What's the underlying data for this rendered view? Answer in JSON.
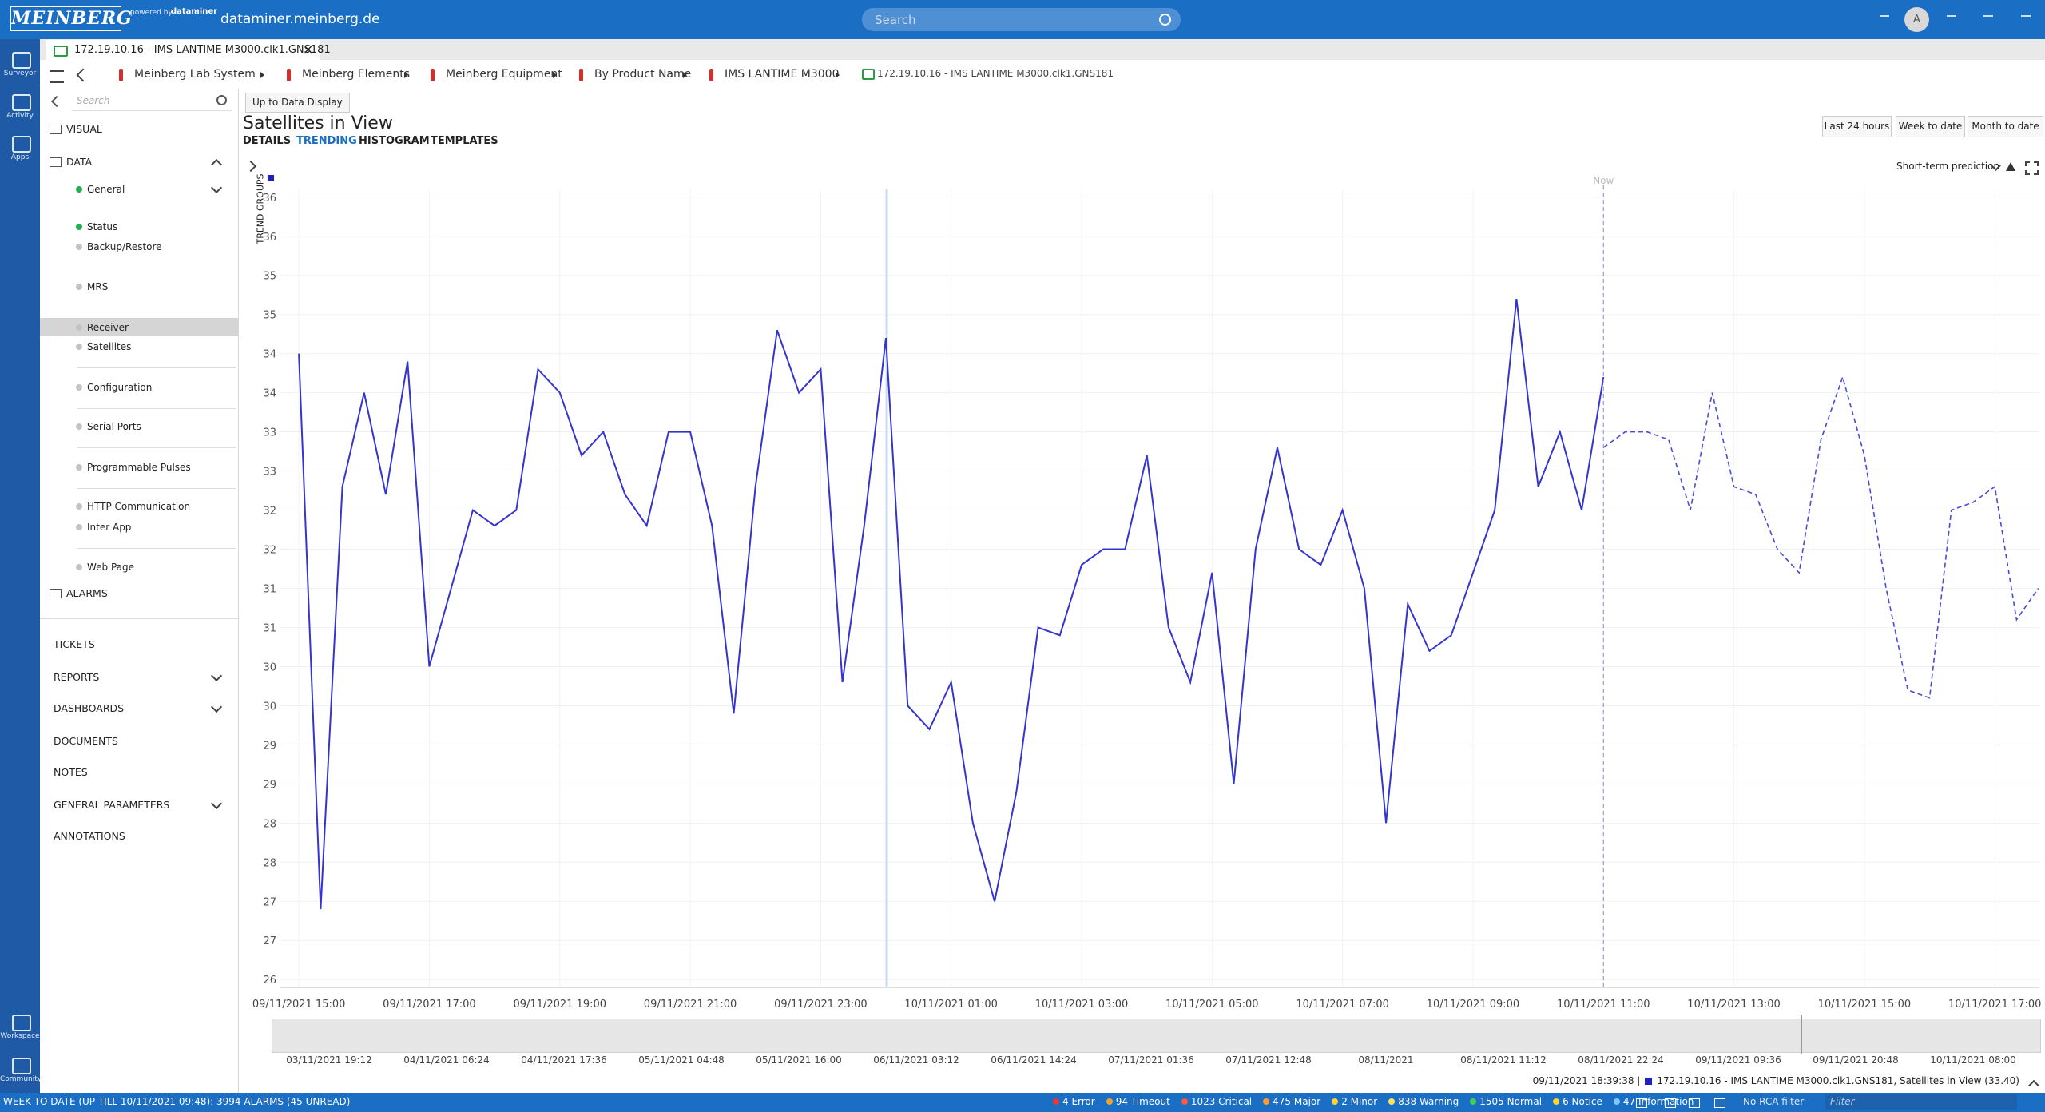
{
  "header": {
    "brand": "MEINBERG",
    "powered": "powered by",
    "dataminer": "dataminer",
    "host": "dataminer.meinberg.de",
    "search": "Search",
    "avatar": "A"
  },
  "rail": [
    "Surveyor",
    "Activity",
    "Apps",
    "Workspace",
    "Community"
  ],
  "tab": "172.19.10.16 - IMS LANTIME M3000.clk1.GNS181",
  "breadcrumb": [
    "Meinberg Lab System",
    "Meinberg Elements",
    "Meinberg Equipment",
    "By Product Name",
    "IMS LANTIME M3000",
    "172.19.10.16 - IMS LANTIME M3000.clk1.GNS181"
  ],
  "sidebar": {
    "search": "Search",
    "items": [
      {
        "label": "VISUAL"
      },
      {
        "label": "DATA"
      },
      {
        "label": "General",
        "dot": "#22b14c"
      },
      {
        "label": "Status",
        "dot": "#22b14c"
      },
      {
        "label": "Backup/Restore",
        "dot": "#c4c4c4"
      },
      {
        "label": "MRS",
        "dot": "#c4c4c4"
      },
      {
        "label": "Receiver",
        "dot": "#c4c4c4"
      },
      {
        "label": "Satellites",
        "dot": "#c4c4c4"
      },
      {
        "label": "Configuration",
        "dot": "#c4c4c4"
      },
      {
        "label": "Serial Ports",
        "dot": "#c4c4c4"
      },
      {
        "label": "Programmable Pulses",
        "dot": "#c4c4c4"
      },
      {
        "label": "HTTP Communication",
        "dot": "#c4c4c4"
      },
      {
        "label": "Inter App",
        "dot": "#c4c4c4"
      },
      {
        "label": "Web Page",
        "dot": "#c4c4c4"
      },
      {
        "label": "ALARMS"
      },
      {
        "label": "TICKETS"
      },
      {
        "label": "REPORTS"
      },
      {
        "label": "DASHBOARDS"
      },
      {
        "label": "DOCUMENTS"
      },
      {
        "label": "NOTES"
      },
      {
        "label": "GENERAL PARAMETERS"
      },
      {
        "label": "ANNOTATIONS"
      }
    ]
  },
  "toolbar": {
    "button": "Up to Data Display",
    "tabs": [
      "DETAILS",
      "TRENDING",
      "HISTOGRAM",
      "TEMPLATES"
    ],
    "ranges": [
      "Last 24 hours",
      "Week to date",
      "Month to date"
    ],
    "prediction": "Short-term prediction",
    "trend_groups": "TREND GROUPS"
  },
  "chart_data": {
    "type": "line",
    "title": "Satellites in View",
    "now_label": "Now",
    "grid": true,
    "ylim": [
      25.9,
      36.1
    ],
    "yticks": [
      {
        "value": 26,
        "label": "26"
      },
      {
        "value": 26.5,
        "label": "27"
      },
      {
        "value": 27,
        "label": "27"
      },
      {
        "value": 27.5,
        "label": "28"
      },
      {
        "value": 28,
        "label": "28"
      },
      {
        "value": 28.5,
        "label": "29"
      },
      {
        "value": 29,
        "label": "29"
      },
      {
        "value": 29.5,
        "label": "30"
      },
      {
        "value": 30,
        "label": "30"
      },
      {
        "value": 30.5,
        "label": "31"
      },
      {
        "value": 31,
        "label": "31"
      },
      {
        "value": 31.5,
        "label": "32"
      },
      {
        "value": 32,
        "label": "32"
      },
      {
        "value": 32.5,
        "label": "33"
      },
      {
        "value": 33,
        "label": "33"
      },
      {
        "value": 33.5,
        "label": "34"
      },
      {
        "value": 34,
        "label": "34"
      },
      {
        "value": 34.5,
        "label": "35"
      },
      {
        "value": 35,
        "label": "35"
      },
      {
        "value": 35.5,
        "label": "36"
      },
      {
        "value": 36,
        "label": "36"
      }
    ],
    "xlim": [
      "09/11/2021 14:43",
      "10/11/2021 17:41"
    ],
    "xticks": [
      "09/11/2021 15:00",
      "09/11/2021 17:00",
      "09/11/2021 19:00",
      "09/11/2021 21:00",
      "09/11/2021 23:00",
      "10/11/2021 01:00",
      "10/11/2021 03:00",
      "10/11/2021 05:00",
      "10/11/2021 07:00",
      "10/11/2021 09:00",
      "10/11/2021 11:00",
      "10/11/2021 13:00",
      "10/11/2021 15:00",
      "10/11/2021 17:00"
    ],
    "series": [
      {
        "color": "#3434d0",
        "line_style": "solid",
        "x": [
          "09/11/2021 15:00",
          "09/11/2021 15:20",
          "09/11/2021 15:40",
          "09/11/2021 16:00",
          "09/11/2021 16:20",
          "09/11/2021 16:40",
          "09/11/2021 17:00",
          "09/11/2021 17:20",
          "09/11/2021 17:40",
          "09/11/2021 18:00",
          "09/11/2021 18:20",
          "09/11/2021 18:40",
          "09/11/2021 19:00",
          "09/11/2021 19:20",
          "09/11/2021 19:40",
          "09/11/2021 20:00",
          "09/11/2021 20:20",
          "09/11/2021 20:40",
          "09/11/2021 21:00",
          "09/11/2021 21:20",
          "09/11/2021 21:40",
          "09/11/2021 22:00",
          "09/11/2021 22:20",
          "09/11/2021 22:40",
          "09/11/2021 23:00",
          "09/11/2021 23:20",
          "09/11/2021 23:40",
          "10/11/2021 00:00",
          "10/11/2021 00:20",
          "10/11/2021 00:40",
          "10/11/2021 01:00",
          "10/11/2021 01:20",
          "10/11/2021 01:40",
          "10/11/2021 02:00",
          "10/11/2021 02:20",
          "10/11/2021 02:40",
          "10/11/2021 03:00",
          "10/11/2021 03:20",
          "10/11/2021 03:40",
          "10/11/2021 04:00",
          "10/11/2021 04:20",
          "10/11/2021 04:40",
          "10/11/2021 05:00",
          "10/11/2021 05:20",
          "10/11/2021 05:40",
          "10/11/2021 06:00",
          "10/11/2021 06:20",
          "10/11/2021 06:40",
          "10/11/2021 07:00",
          "10/11/2021 07:20",
          "10/11/2021 07:40",
          "10/11/2021 08:00",
          "10/11/2021 08:20",
          "10/11/2021 08:40",
          "10/11/2021 09:00",
          "10/11/2021 09:20",
          "10/11/2021 09:40",
          "10/11/2021 10:00",
          "10/11/2021 10:20",
          "10/11/2021 10:40",
          "10/11/2021 11:00"
        ],
        "values": [
          34.0,
          26.9,
          32.3,
          33.5,
          32.2,
          33.9,
          30.0,
          31.0,
          32.0,
          31.8,
          32.0,
          33.8,
          33.5,
          32.7,
          33.0,
          32.2,
          31.8,
          33.0,
          33.0,
          31.8,
          29.4,
          32.3,
          34.3,
          33.5,
          33.8,
          29.8,
          31.8,
          34.2,
          29.5,
          29.2,
          29.8,
          28.0,
          27.0,
          28.4,
          30.5,
          30.4,
          31.3,
          31.5,
          31.5,
          32.7,
          30.5,
          29.8,
          31.2,
          28.5,
          31.5,
          32.8,
          31.5,
          31.3,
          32.0,
          31.0,
          28.0,
          30.8,
          30.2,
          30.4,
          31.2,
          32.0,
          34.7,
          32.3,
          33.0,
          32.0,
          33.7
        ]
      },
      {
        "color": "#4a4ad8",
        "line_style": "dashed",
        "x": [
          "10/11/2021 11:00",
          "10/11/2021 11:20",
          "10/11/2021 11:40",
          "10/11/2021 12:00",
          "10/11/2021 12:20",
          "10/11/2021 12:40",
          "10/11/2021 13:00",
          "10/11/2021 13:20",
          "10/11/2021 13:40",
          "10/11/2021 14:00",
          "10/11/2021 14:20",
          "10/11/2021 14:40",
          "10/11/2021 15:00",
          "10/11/2021 15:20",
          "10/11/2021 15:40",
          "10/11/2021 16:00",
          "10/11/2021 16:20",
          "10/11/2021 16:40",
          "10/11/2021 17:00",
          "10/11/2021 17:20",
          "10/11/2021 17:40"
        ],
        "values": [
          32.8,
          33.0,
          33.0,
          32.9,
          32.0,
          33.5,
          32.3,
          32.2,
          31.5,
          31.2,
          32.9,
          33.7,
          32.7,
          31.0,
          29.7,
          29.6,
          32.0,
          32.1,
          32.3,
          30.6,
          31.0
        ]
      }
    ]
  },
  "overview": {
    "labels": [
      "03/11/2021 19:12",
      "04/11/2021 06:24",
      "04/11/2021 17:36",
      "05/11/2021 04:48",
      "05/11/2021 16:00",
      "06/11/2021 03:12",
      "06/11/2021 14:24",
      "07/11/2021 01:36",
      "07/11/2021 12:48",
      "08/11/2021",
      "08/11/2021 11:12",
      "08/11/2021 22:24",
      "09/11/2021 09:36",
      "09/11/2021 20:48",
      "10/11/2021 08:00"
    ]
  },
  "info": {
    "time": "09/11/2021 18:39:38 |",
    "text": "172.19.10.16 - IMS LANTIME M3000.clk1.GNS181, Satellites in View (33.40)"
  },
  "status": {
    "summary": "WEEK TO DATE (UP TILL 10/11/2021 09:48): 3994 ALARMS (45 UNREAD)",
    "counts": [
      {
        "label": "4 Error",
        "color": "#e53935"
      },
      {
        "label": "94 Timeout",
        "color": "#f0a030"
      },
      {
        "label": "1023 Critical",
        "color": "#ff5a36"
      },
      {
        "label": "475 Major",
        "color": "#ff9a2e"
      },
      {
        "label": "2 Minor",
        "color": "#ffd23a"
      },
      {
        "label": "838 Warning",
        "color": "#ffe066"
      },
      {
        "label": "1505 Normal",
        "color": "#3fcf5a"
      },
      {
        "label": "6 Notice",
        "color": "#ffd23a"
      },
      {
        "label": "47 Information",
        "color": "#7ec8ff"
      }
    ],
    "rca": "No RCA filter",
    "filter": "Filter"
  }
}
